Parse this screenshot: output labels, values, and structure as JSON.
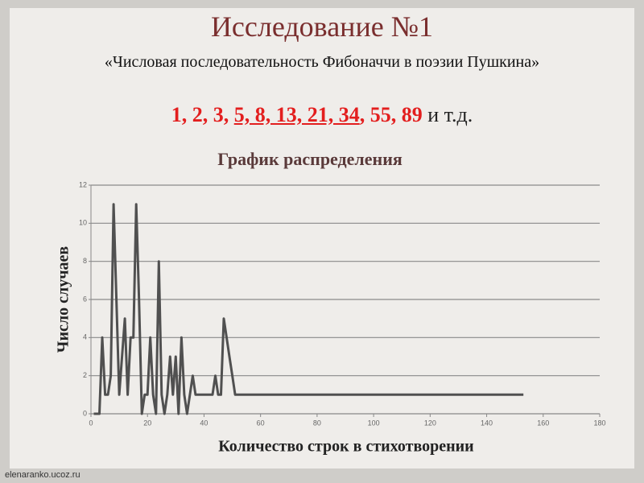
{
  "slide": {
    "title": "Исследование №1",
    "subtitle": "«Числовая последовательность Фибоначчи в поэзии Пушкина»",
    "sequence": {
      "start": "1, 2, 3, ",
      "underlined": "5, 8, 13, 21, 34",
      "end": ", 55, 89",
      "suffix": " и т.д."
    },
    "footer": "elenaranko.ucoz.ru"
  },
  "chart_data": {
    "type": "line",
    "title": "График распределения",
    "x_label": "Количество строк в стихотворении",
    "y_label": "Число случаев",
    "x": [
      1,
      2,
      3,
      4,
      5,
      6,
      7,
      8,
      9,
      10,
      11,
      12,
      13,
      14,
      15,
      16,
      17,
      18,
      19,
      20,
      21,
      22,
      23,
      24,
      25,
      26,
      27,
      28,
      29,
      30,
      31,
      32,
      33,
      34,
      35,
      36,
      37,
      38,
      39,
      40,
      41,
      42,
      43,
      44,
      45,
      46,
      47,
      48,
      49,
      50,
      51,
      52,
      53,
      153
    ],
    "values": [
      0,
      0,
      0,
      4,
      1,
      1,
      2,
      11,
      6,
      1,
      3,
      5,
      1,
      4,
      4,
      11,
      6,
      0,
      1,
      1,
      4,
      1,
      0,
      8,
      1,
      0,
      1,
      3,
      1,
      3,
      0,
      4,
      1,
      0,
      1,
      2,
      1,
      1,
      1,
      1,
      1,
      1,
      1,
      2,
      1,
      1,
      5,
      4,
      3,
      2,
      1,
      1,
      1,
      1
    ],
    "color": "#505050",
    "xlim": [
      0,
      180
    ],
    "xticks": [
      0,
      20,
      40,
      60,
      80,
      100,
      120,
      140,
      160,
      180
    ],
    "ylim": [
      0,
      12
    ],
    "yticks": [
      0,
      2,
      4,
      6,
      8,
      10,
      12
    ],
    "grid": true
  }
}
